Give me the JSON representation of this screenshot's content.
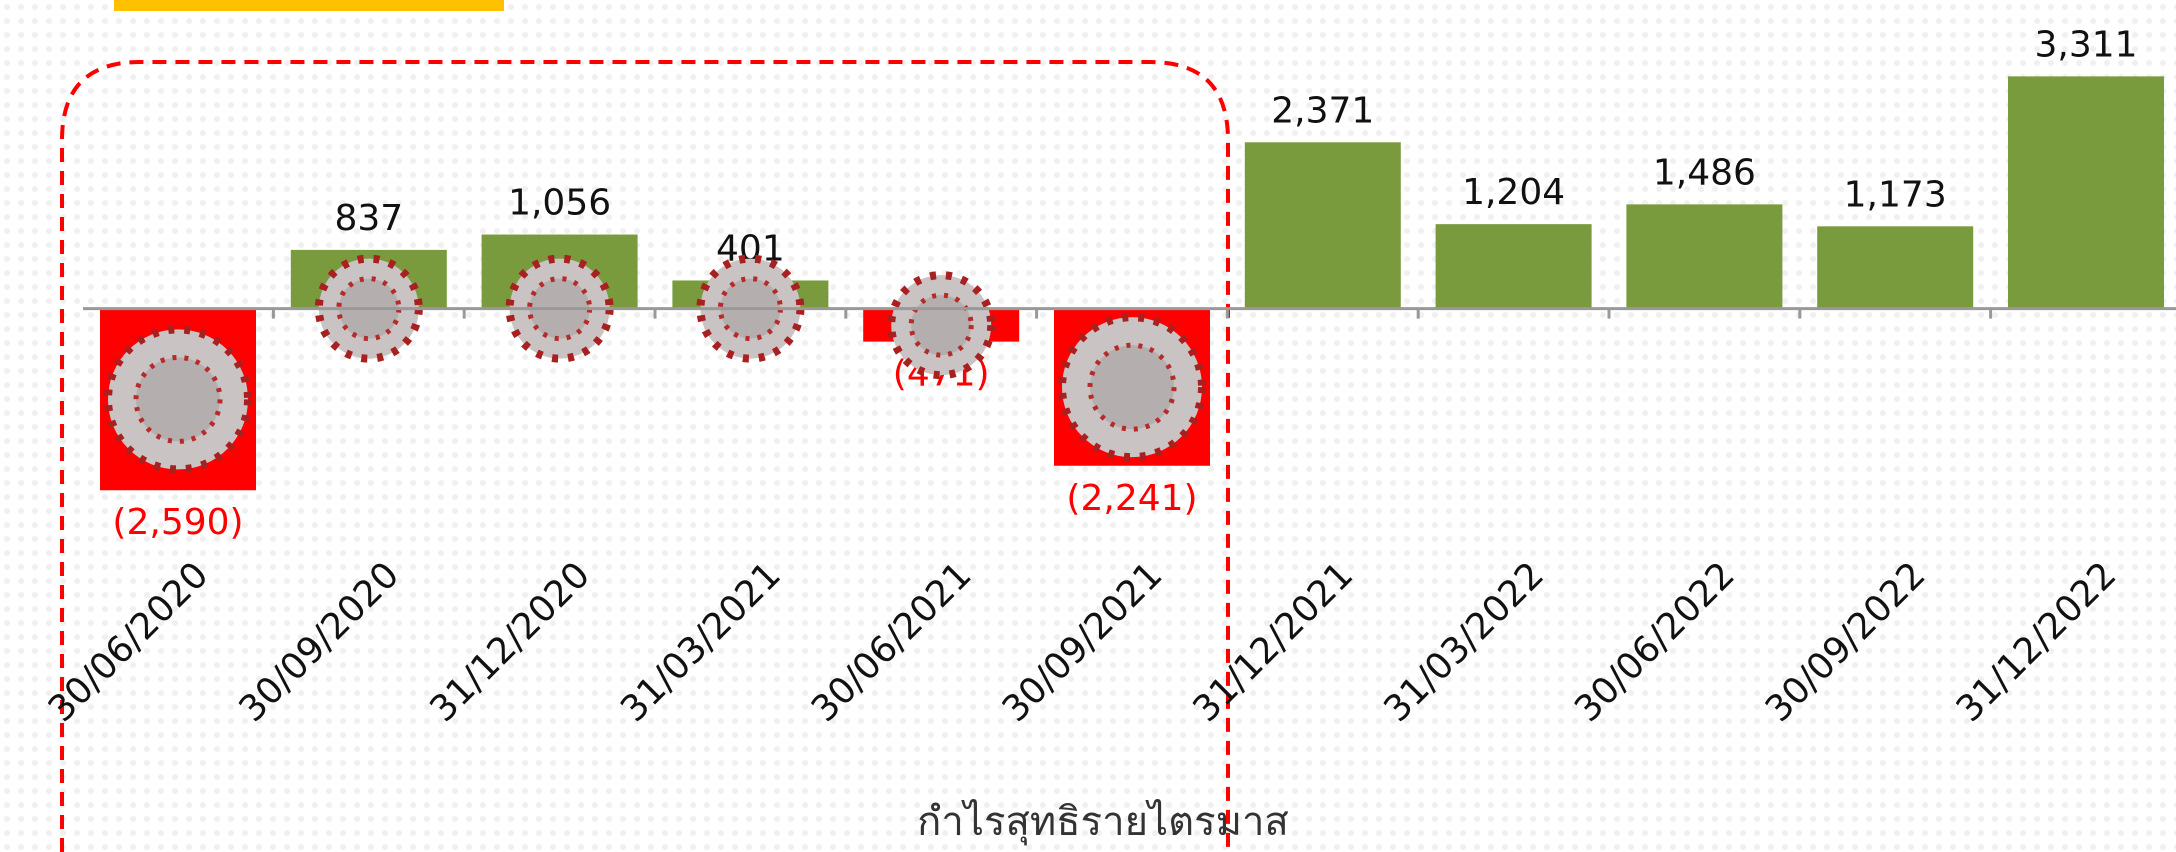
{
  "chart_data": {
    "type": "bar",
    "x_label": "กำไรสุทธิรายไตรมาส",
    "categories": [
      "30/06/2020",
      "30/09/2020",
      "31/12/2020",
      "31/03/2021",
      "30/06/2021",
      "30/09/2021",
      "31/12/2021",
      "31/03/2022",
      "30/06/2022",
      "30/09/2022",
      "31/12/2022"
    ],
    "values": [
      -2590,
      837,
      1056,
      401,
      -471,
      -2241,
      2371,
      1204,
      1486,
      1173,
      3311
    ],
    "value_labels": [
      "(2,590)",
      "837",
      "1,056",
      "401",
      "(471)",
      "(2,241)",
      "2,371",
      "1,204",
      "1,486",
      "1,173",
      "3,311"
    ],
    "positive_color": "#7a9a3e",
    "negative_color": "#ff0000",
    "ylim": [
      -3000,
      4400
    ]
  }
}
